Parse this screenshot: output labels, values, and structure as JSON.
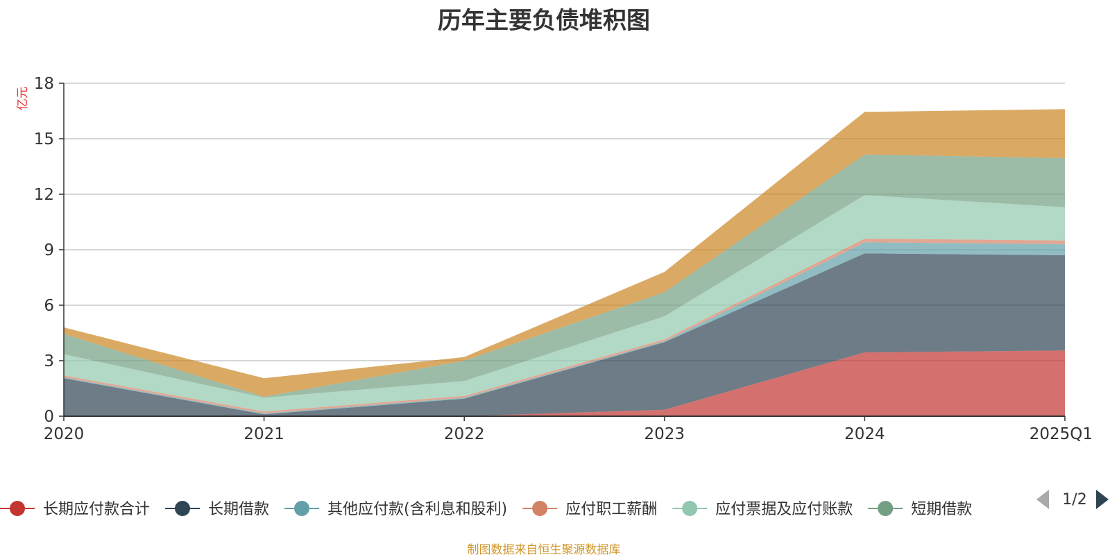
{
  "chart_data": {
    "type": "area",
    "stacked": true,
    "title": "历年主要负债堆积图",
    "unit_label": "亿元",
    "categories": [
      "2020",
      "2021",
      "2022",
      "2023",
      "2024",
      "2025Q1"
    ],
    "y_ticks": [
      "0",
      "3",
      "6",
      "9",
      "12",
      "15",
      "18"
    ],
    "ylim": [
      0,
      18
    ],
    "grid": true,
    "series": [
      {
        "name": "长期应付款合计",
        "color": "#c23531",
        "values": [
          0,
          0,
          0,
          0.35,
          3.45,
          3.55
        ]
      },
      {
        "name": "长期借款",
        "color": "#2f4554",
        "values": [
          2.05,
          0.1,
          0.95,
          3.65,
          5.35,
          5.15
        ]
      },
      {
        "name": "其他应付款(含利息和股利)",
        "color": "#61a0a8",
        "values": [
          0.05,
          0.05,
          0.05,
          0.05,
          0.6,
          0.6
        ]
      },
      {
        "name": "应付职工薪酬",
        "color": "#d48265",
        "values": [
          0.1,
          0.1,
          0.1,
          0.1,
          0.2,
          0.2
        ]
      },
      {
        "name": "应付票据及应付账款",
        "color": "#91c7ae",
        "values": [
          1.15,
          0.75,
          0.8,
          1.25,
          2.35,
          1.8
        ]
      },
      {
        "name": "短期借款",
        "color": "#749f83",
        "values": [
          1.1,
          0.05,
          1.1,
          1.3,
          2.2,
          2.65
        ]
      },
      {
        "name": "",
        "color": "#ca8622",
        "values": [
          0.35,
          1.0,
          0.2,
          1.1,
          2.3,
          2.65
        ]
      }
    ],
    "legend_position": "bottom",
    "legend_page": "1/2"
  },
  "source_note": "制图数据来自恒生聚源数据库"
}
